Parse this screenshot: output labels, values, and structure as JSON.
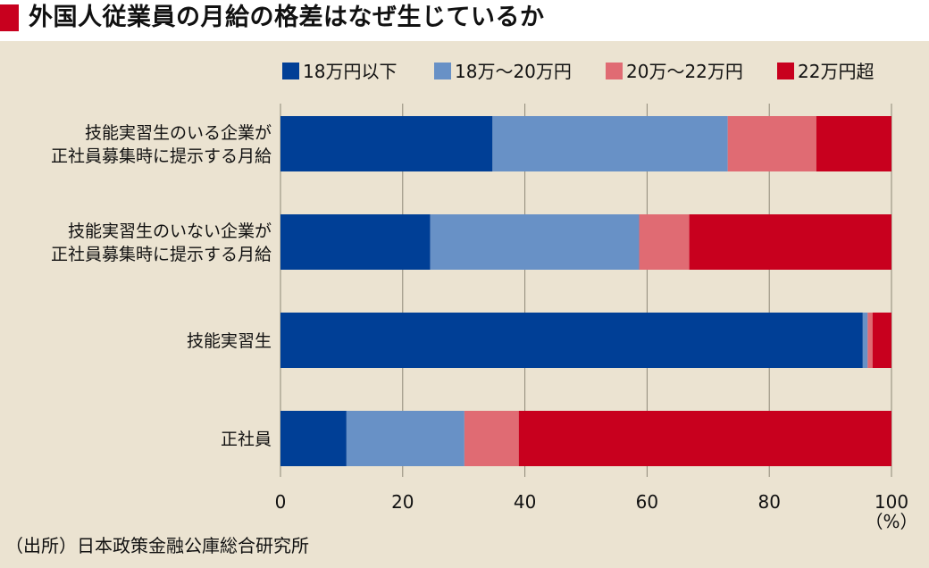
{
  "title": "外国人従業員の月給の格差はなぜ生じているか",
  "source": "（出所）日本政策金融公庫総合研究所",
  "unit_label": "（%）",
  "colors": {
    "title_mark": "#c8001e",
    "panel_background": "#ebe3d1"
  },
  "chart_data": {
    "type": "bar",
    "orientation": "horizontal",
    "stacked": true,
    "categories": [
      [
        "技能実習生のいる企業が",
        "正社員募集時に提示する月給"
      ],
      [
        "技能実習生のいない企業が",
        "正社員募集時に提示する月給"
      ],
      [
        "技能実習生"
      ],
      [
        "正社員"
      ]
    ],
    "series": [
      {
        "name": "18万円以下",
        "color": "#003f96",
        "values": [
          34.7,
          24.5,
          95.3,
          10.8
        ]
      },
      {
        "name": "18万～20万円",
        "color": "#6891c6",
        "values": [
          38.5,
          34.2,
          0.8,
          19.3
        ]
      },
      {
        "name": "20万～22万円",
        "color": "#e06b73",
        "values": [
          14.5,
          8.2,
          0.8,
          8.9
        ]
      },
      {
        "name": "22万円超",
        "color": "#c8001e",
        "values": [
          12.3,
          33.1,
          3.1,
          61.0
        ]
      }
    ],
    "xlim": [
      0,
      100
    ],
    "xticks": [
      "0",
      "20",
      "40",
      "60",
      "80",
      "100"
    ],
    "grid": true,
    "legend_position": "top"
  }
}
